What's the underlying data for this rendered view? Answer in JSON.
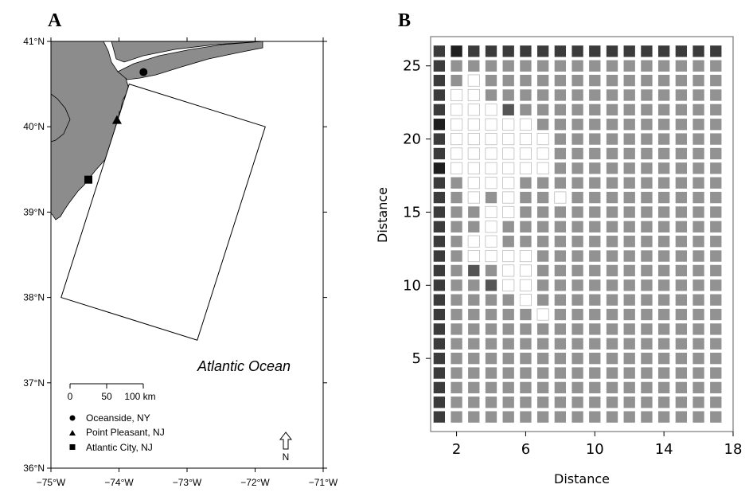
{
  "chart_data": [
    {
      "type": "map",
      "panel_label": "A",
      "lon_range": [
        -75,
        -71
      ],
      "lat_range": [
        36,
        41
      ],
      "x_ticks": [
        "−75°W",
        "−74°W",
        "−73°W",
        "−72°W",
        "−71°W"
      ],
      "y_ticks": [
        "36°N",
        "37°N",
        "38°N",
        "39°N",
        "40°N",
        "41°N"
      ],
      "study_area_corners": [
        {
          "lon": -73.85,
          "lat": 40.5
        },
        {
          "lon": -71.85,
          "lat": 40.0
        },
        {
          "lon": -72.85,
          "lat": 37.5
        },
        {
          "lon": -74.85,
          "lat": 38.0
        }
      ],
      "ocean_label": "Atlantic Ocean",
      "scale_bar": {
        "labels": [
          "0",
          "50",
          "100 km"
        ]
      },
      "legend": [
        {
          "marker": "circle",
          "label": "Oceanside, NY",
          "lon": -73.64,
          "lat": 40.64
        },
        {
          "marker": "triangle",
          "label": "Point Pleasant, NJ",
          "lon": -74.03,
          "lat": 40.08
        },
        {
          "marker": "square",
          "label": "Atlantic City, NJ",
          "lon": -74.45,
          "lat": 39.38
        }
      ],
      "north_arrow": "N"
    },
    {
      "type": "heatmap",
      "panel_label": "B",
      "xlabel": "Distance",
      "ylabel": "Distance",
      "xlim": [
        0.5,
        18
      ],
      "ylim": [
        0,
        27
      ],
      "x_ticks": [
        2,
        6,
        10,
        14,
        18
      ],
      "y_ticks": [
        5,
        10,
        15,
        20,
        25
      ],
      "grid_size": {
        "cols": 17,
        "rows": 26
      },
      "levels": {
        "1": "#3b3b3b",
        "2": "#929292",
        "3": "#ffffff",
        "4": "#1e1e1e",
        "5": "#555555"
      },
      "default_level": 2,
      "column_1_level": 1,
      "row_26_level": 1,
      "white_cells": [
        {
          "x": 3,
          "y": 24
        },
        {
          "x": 2,
          "y": 23
        },
        {
          "x": 3,
          "y": 23
        },
        {
          "x": 2,
          "y": 22
        },
        {
          "x": 3,
          "y": 22
        },
        {
          "x": 4,
          "y": 22
        },
        {
          "x": 2,
          "y": 21
        },
        {
          "x": 3,
          "y": 21
        },
        {
          "x": 4,
          "y": 21
        },
        {
          "x": 5,
          "y": 21
        },
        {
          "x": 6,
          "y": 21
        },
        {
          "x": 2,
          "y": 20
        },
        {
          "x": 3,
          "y": 20
        },
        {
          "x": 4,
          "y": 20
        },
        {
          "x": 5,
          "y": 20
        },
        {
          "x": 6,
          "y": 20
        },
        {
          "x": 7,
          "y": 20
        },
        {
          "x": 2,
          "y": 19
        },
        {
          "x": 3,
          "y": 19
        },
        {
          "x": 4,
          "y": 19
        },
        {
          "x": 5,
          "y": 19
        },
        {
          "x": 6,
          "y": 19
        },
        {
          "x": 7,
          "y": 19
        },
        {
          "x": 2,
          "y": 18
        },
        {
          "x": 3,
          "y": 18
        },
        {
          "x": 4,
          "y": 18
        },
        {
          "x": 5,
          "y": 18
        },
        {
          "x": 6,
          "y": 18
        },
        {
          "x": 7,
          "y": 18
        },
        {
          "x": 3,
          "y": 17
        },
        {
          "x": 4,
          "y": 17
        },
        {
          "x": 5,
          "y": 17
        },
        {
          "x": 3,
          "y": 16
        },
        {
          "x": 5,
          "y": 16
        },
        {
          "x": 8,
          "y": 16
        },
        {
          "x": 4,
          "y": 15
        },
        {
          "x": 5,
          "y": 15
        },
        {
          "x": 4,
          "y": 14
        },
        {
          "x": 4,
          "y": 13
        },
        {
          "x": 3,
          "y": 13
        },
        {
          "x": 3,
          "y": 12
        },
        {
          "x": 4,
          "y": 12
        },
        {
          "x": 5,
          "y": 12
        },
        {
          "x": 6,
          "y": 12
        },
        {
          "x": 5,
          "y": 11
        },
        {
          "x": 6,
          "y": 11
        },
        {
          "x": 5,
          "y": 10
        },
        {
          "x": 6,
          "y": 10
        },
        {
          "x": 6,
          "y": 9
        },
        {
          "x": 7,
          "y": 8
        }
      ],
      "dark_cells": [
        {
          "x": 2,
          "y": 26,
          "level": 4
        },
        {
          "x": 1,
          "y": 21,
          "level": 4
        },
        {
          "x": 1,
          "y": 18,
          "level": 4
        },
        {
          "x": 5,
          "y": 22,
          "level": 5
        },
        {
          "x": 3,
          "y": 11,
          "level": 5
        },
        {
          "x": 4,
          "y": 10,
          "level": 5
        }
      ]
    }
  ]
}
